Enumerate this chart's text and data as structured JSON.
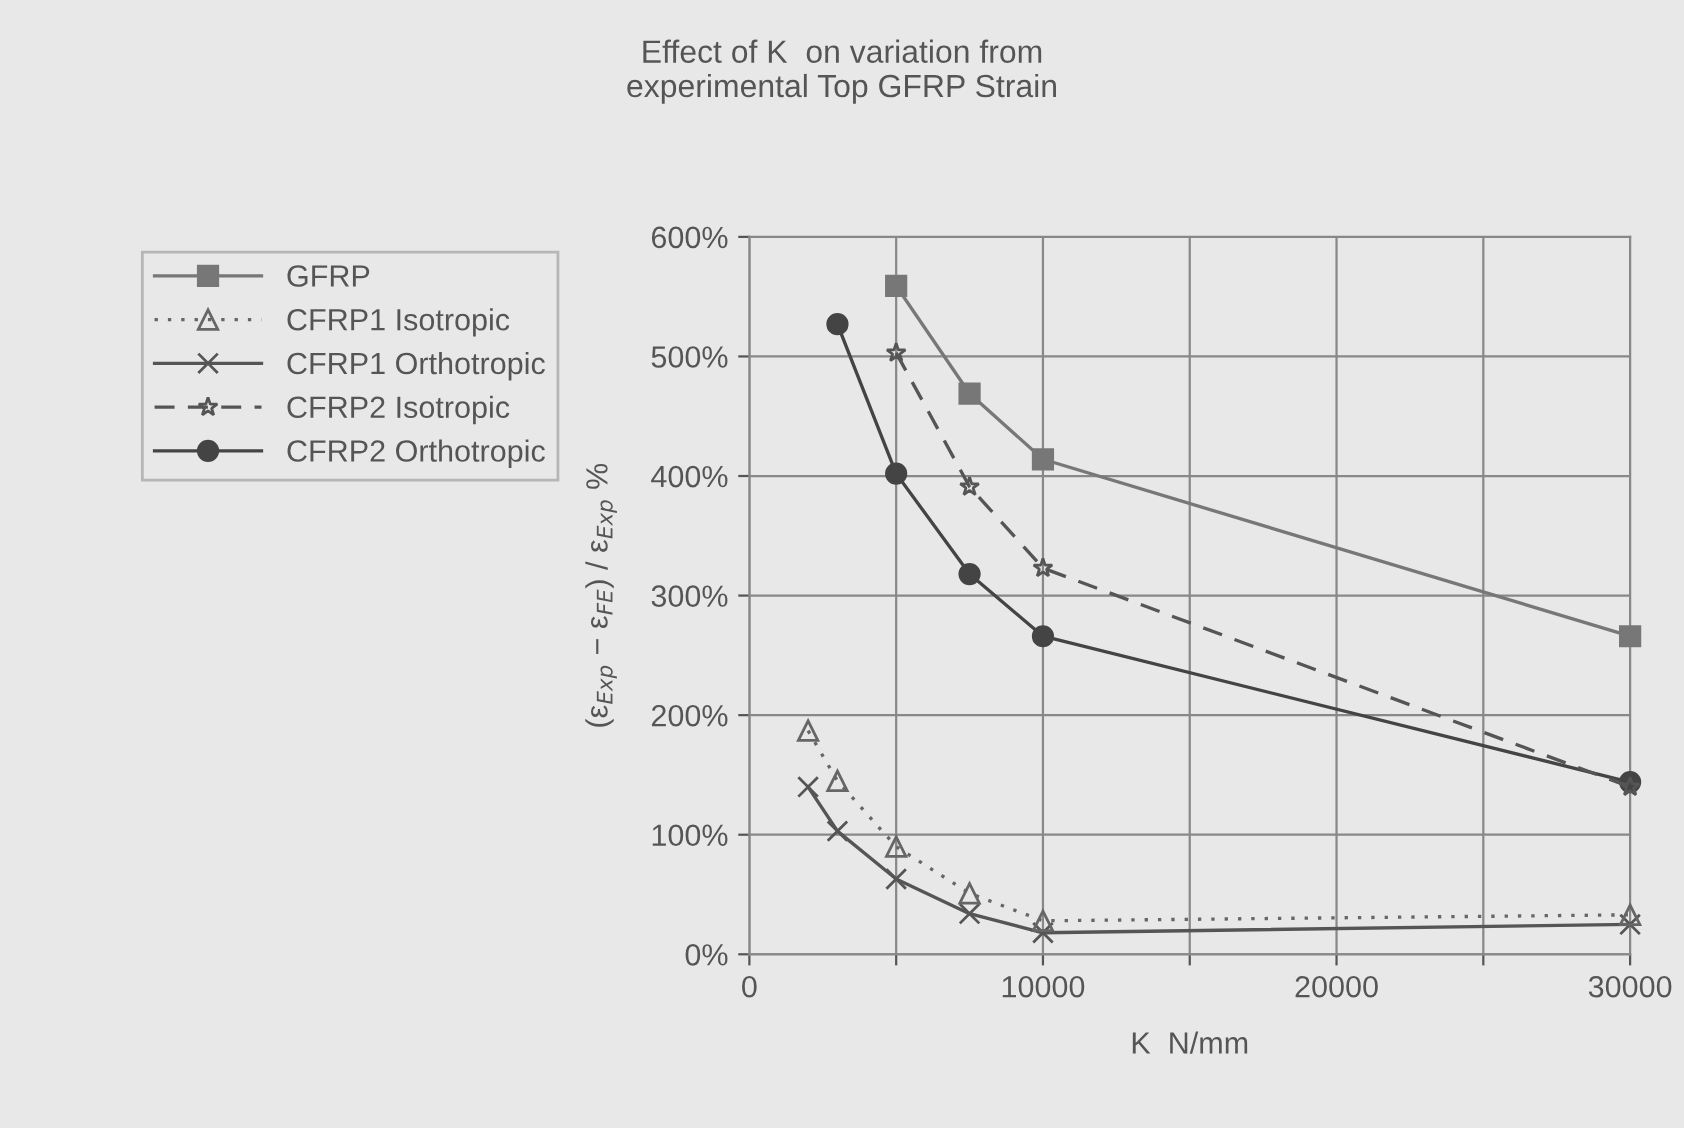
{
  "chart_data": {
    "type": "line",
    "title": "Effect of K  on variation from\nexperimental Top GFRP Strain",
    "xlabel": "K  N/mm",
    "ylabel": "(ε$_{Exp}$ − ε$_{FE}$) / ε$_{Exp}$ %",
    "xlim": [
      0,
      30000
    ],
    "ylim": [
      0,
      600
    ],
    "xticks": [
      0,
      {
        "value": 5000,
        "label": null
      },
      10000,
      {
        "value": 15000,
        "label": null
      },
      20000,
      {
        "value": 25000,
        "label": null
      },
      30000
    ],
    "yticks": [
      {
        "value": 0,
        "label": "0%"
      },
      {
        "value": 100,
        "label": "100%"
      },
      {
        "value": 200,
        "label": "200%"
      },
      {
        "value": 300,
        "label": "300%"
      },
      {
        "value": 400,
        "label": "400%"
      },
      {
        "value": 500,
        "label": "500%"
      },
      {
        "value": 600,
        "label": "600%"
      }
    ],
    "grid": true,
    "legend": "left",
    "series": [
      {
        "name": "GFRP",
        "color": "#777777",
        "marker": "square",
        "line_style": "solid",
        "x": [
          5000,
          7500,
          10000,
          30000
        ],
        "values": [
          559,
          469,
          414,
          266
        ]
      },
      {
        "name": "CFRP1 Isotropic",
        "color": "#666666",
        "marker": "triangle",
        "line_style": "dotted",
        "x": [
          2000,
          3000,
          5000,
          7500,
          10000,
          30000
        ],
        "values": [
          187,
          145,
          90,
          51,
          28,
          33
        ]
      },
      {
        "name": "CFRP1 Orthotropic",
        "color": "#555555",
        "marker": "cross",
        "line_style": "solid",
        "x": [
          2000,
          3000,
          5000,
          7500,
          10000,
          30000
        ],
        "values": [
          140,
          103,
          63,
          34,
          18,
          25
        ]
      },
      {
        "name": "CFRP2 Isotropic",
        "color": "#555555",
        "marker": "star",
        "line_style": "dashed",
        "x": [
          5000,
          7500,
          10000,
          30000
        ],
        "values": [
          503,
          391,
          323,
          140
        ]
      },
      {
        "name": "CFRP2 Orthotropic",
        "color": "#444444",
        "marker": "circle",
        "line_style": "solid",
        "x": [
          3000,
          5000,
          7500,
          10000,
          30000
        ],
        "values": [
          527,
          402,
          318,
          266,
          144
        ]
      }
    ]
  }
}
